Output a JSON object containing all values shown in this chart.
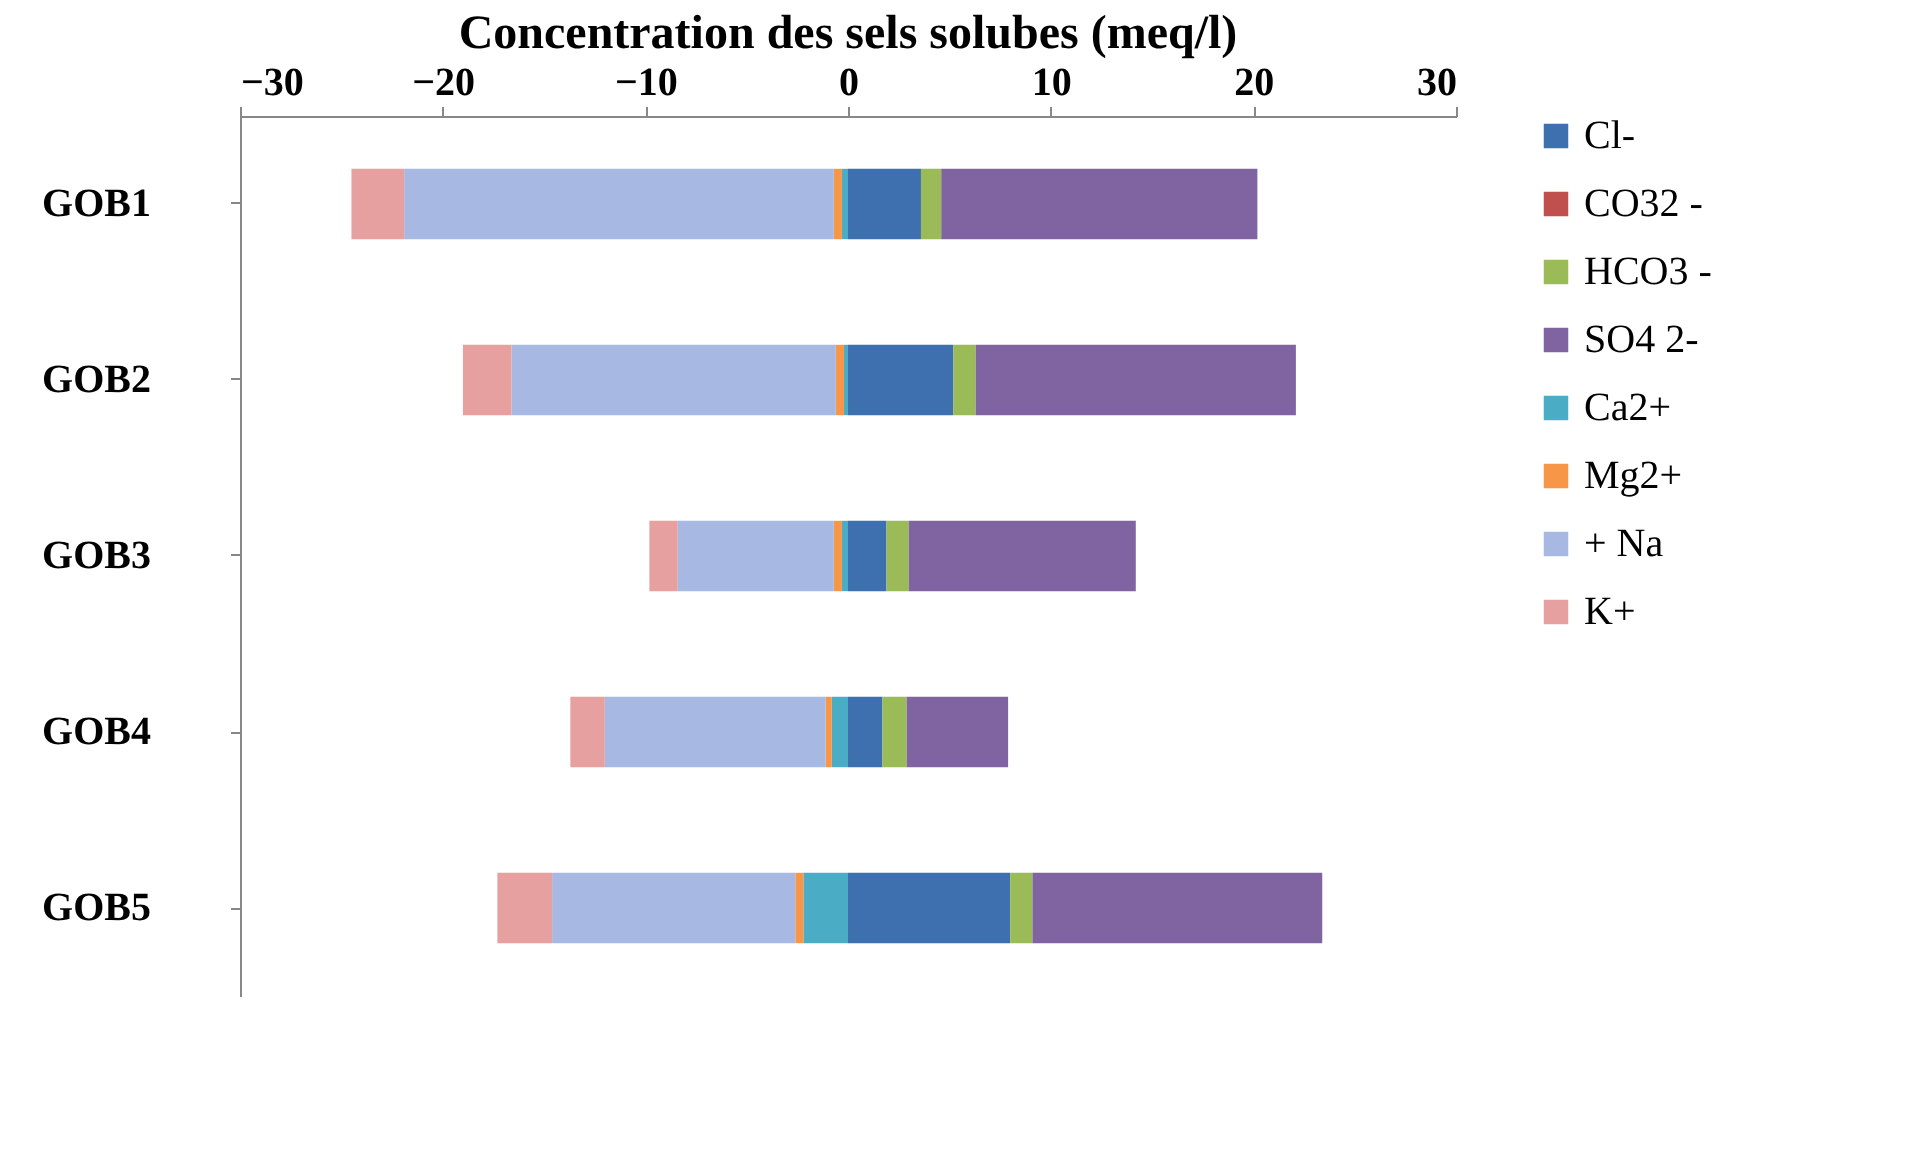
{
  "chart_data": {
    "type": "bar",
    "orientation": "horizontal",
    "stacked": true,
    "title": "Concentration  des sels solubes (meq/l)",
    "categories": [
      "GOB1",
      "GOB2",
      "GOB3",
      "GOB4",
      "GOB5"
    ],
    "xlim": [
      -30,
      30
    ],
    "xticks": [
      -30,
      -20,
      -10,
      0,
      10,
      20,
      30
    ],
    "grid": false,
    "legend": "right",
    "series": [
      {
        "name": "Cl-",
        "color": "#3e6fae",
        "values": [
          3.6,
          5.2,
          1.9,
          1.7,
          8.0
        ]
      },
      {
        "name": "CO32 -",
        "color": "#c0504d",
        "values": [
          0,
          0,
          0,
          0,
          0
        ]
      },
      {
        "name": "HCO3 -",
        "color": "#9bbb59",
        "values": [
          1.0,
          1.1,
          1.1,
          1.2,
          1.1
        ]
      },
      {
        "name": "SO4 2-",
        "color": "#8064a2",
        "values": [
          15.6,
          15.8,
          11.2,
          5.0,
          14.3
        ]
      },
      {
        "name": "Ca2+",
        "color": "#4bacc6",
        "values": [
          -0.3,
          -0.2,
          -0.3,
          -0.8,
          -2.2
        ]
      },
      {
        "name": "Mg2+",
        "color": "#f79646",
        "values": [
          -0.4,
          -0.4,
          -0.4,
          -0.3,
          -0.4
        ]
      },
      {
        "name": "+    Na",
        "color": "#a7b9e3",
        "values": [
          -21.2,
          -16.0,
          -7.7,
          -10.9,
          -12.0
        ]
      },
      {
        "name": "K+",
        "color": "#e6a0a0",
        "values": [
          -2.6,
          -2.4,
          -1.4,
          -1.7,
          -2.7
        ]
      }
    ]
  }
}
